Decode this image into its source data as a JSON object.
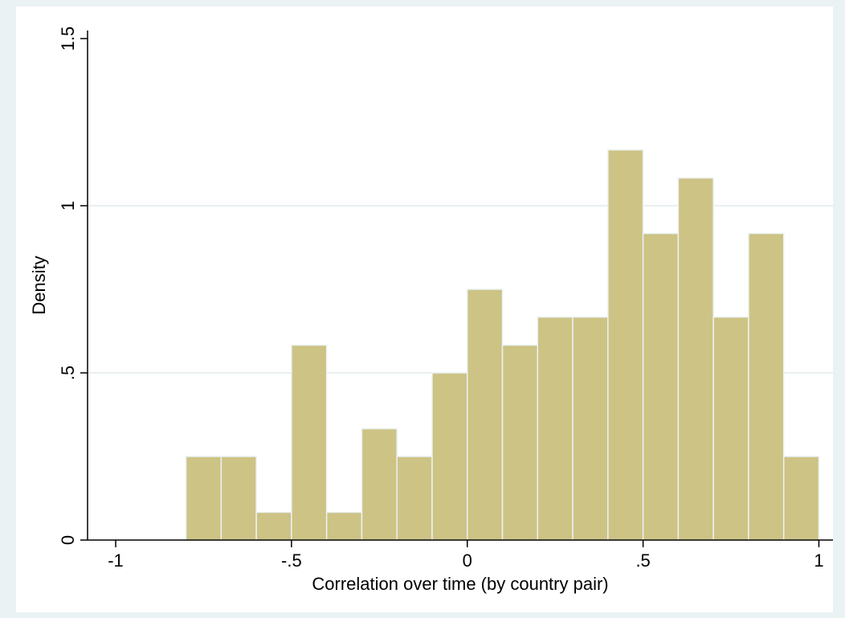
{
  "chart_data": {
    "type": "bar",
    "subtype": "histogram",
    "title": "",
    "xlabel": "Correlation over time (by country pair)",
    "ylabel": "Density",
    "xlim": [
      -1.08,
      1.04
    ],
    "ylim": [
      0,
      1.5
    ],
    "x_ticks": [
      -1,
      -0.5,
      0,
      0.5,
      1
    ],
    "x_tick_labels": [
      "-1",
      "-.5",
      "0",
      ".5",
      "1"
    ],
    "y_ticks": [
      0,
      0.5,
      1,
      1.5
    ],
    "y_tick_labels": [
      "0",
      ".5",
      "1",
      "1.5"
    ],
    "grid": "horizontal",
    "bin_width": 0.1,
    "bin_starts": [
      -0.8,
      -0.7,
      -0.6,
      -0.5,
      -0.4,
      -0.3,
      -0.2,
      -0.1,
      0.0,
      0.1,
      0.2,
      0.3,
      0.4,
      0.5,
      0.6,
      0.7,
      0.8,
      0.9
    ],
    "values": [
      0.25,
      0.25,
      0.083,
      0.583,
      0.083,
      0.333,
      0.25,
      0.5,
      0.75,
      0.583,
      0.667,
      0.667,
      1.167,
      0.917,
      1.083,
      0.667,
      0.917,
      0.25
    ],
    "colors": {
      "bar_fill": "#cdc385",
      "bar_stroke": "#eaf2f3",
      "plot_background": "#ffffff",
      "outer_background": "#eaf2f3",
      "grid": "#e2ebed",
      "axis": "#000000"
    }
  }
}
